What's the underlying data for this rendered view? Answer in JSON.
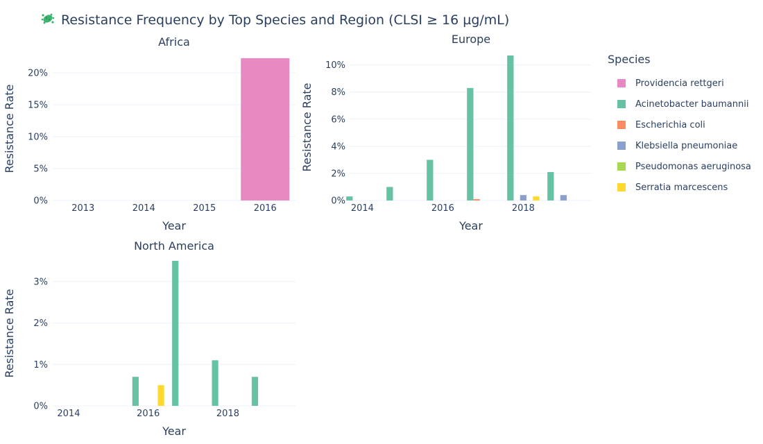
{
  "title": {
    "icon": "bacteria-icon",
    "text": "Resistance Frequency by Top Species and Region (CLSI ≥ 16 µg/mL)"
  },
  "legend": {
    "title": "Species",
    "items": [
      {
        "label": "Providencia rettgeri",
        "color": "#e78ac3"
      },
      {
        "label": "Acinetobacter baumannii",
        "color": "#66c2a5"
      },
      {
        "label": "Escherichia coli",
        "color": "#fc8d62"
      },
      {
        "label": "Klebsiella pneumoniae",
        "color": "#8da0cb"
      },
      {
        "label": "Pseudomonas aeruginosa",
        "color": "#a6d854"
      },
      {
        "label": "Serratia marcescens",
        "color": "#ffd92f"
      }
    ]
  },
  "chart_data": [
    {
      "type": "bar",
      "title": "Africa",
      "xlabel": "Year",
      "ylabel": "Resistance Rate",
      "x_ticks": [
        2013,
        2014,
        2015,
        2016
      ],
      "ylim": [
        0,
        0.225
      ],
      "y_ticks": [
        0,
        0.05,
        0.1,
        0.15,
        0.2
      ],
      "y_tick_labels": [
        "0%",
        "5%",
        "10%",
        "15%",
        "20%"
      ],
      "bar_width_years": 0.8,
      "series": [
        {
          "name": "Providencia rettgeri",
          "color": "#e78ac3",
          "x": [
            2013,
            2014,
            2015,
            2016
          ],
          "values": [
            0,
            0,
            0,
            0.223
          ]
        }
      ]
    },
    {
      "type": "bar",
      "title": "Europe",
      "xlabel": "Year",
      "ylabel": "Resistance Rate",
      "x_ticks": [
        2014,
        2016,
        2018
      ],
      "xlim": [
        2013.7,
        2019.7
      ],
      "ylim": [
        0,
        0.108
      ],
      "y_ticks": [
        0,
        0.02,
        0.04,
        0.06,
        0.08,
        0.1
      ],
      "y_tick_labels": [
        "0%",
        "2%",
        "4%",
        "6%",
        "8%",
        "10%"
      ],
      "bar_width_years": 0.16,
      "series": [
        {
          "name": "Acinetobacter baumannii",
          "color": "#66c2a5",
          "x": [
            2014,
            2015,
            2016,
            2017,
            2018,
            2019
          ],
          "values": [
            0.003,
            0.01,
            0.03,
            0.083,
            0.107,
            0.021
          ]
        },
        {
          "name": "Escherichia coli",
          "color": "#fc8d62",
          "x": [
            2014,
            2015,
            2016,
            2017,
            2018,
            2019
          ],
          "values": [
            0,
            0,
            0,
            0.001,
            0,
            0
          ]
        },
        {
          "name": "Klebsiella pneumoniae",
          "color": "#8da0cb",
          "x": [
            2014,
            2015,
            2016,
            2017,
            2018,
            2019
          ],
          "values": [
            0,
            0,
            0,
            0,
            0.004,
            0.004
          ]
        },
        {
          "name": "Pseudomonas aeruginosa",
          "color": "#a6d854",
          "x": [
            2014,
            2015,
            2016,
            2017,
            2018,
            2019
          ],
          "values": [
            0,
            0,
            0,
            0,
            0,
            0
          ]
        },
        {
          "name": "Serratia marcescens",
          "color": "#ffd92f",
          "x": [
            2014,
            2015,
            2016,
            2017,
            2018,
            2019
          ],
          "values": [
            0,
            0,
            0,
            0,
            0.003,
            0
          ]
        }
      ]
    },
    {
      "type": "bar",
      "title": "North America",
      "xlabel": "Year",
      "ylabel": "Resistance Rate",
      "x_ticks": [
        2014,
        2016,
        2018
      ],
      "xlim": [
        2013.6,
        2019.7
      ],
      "ylim": [
        0,
        0.035
      ],
      "y_ticks": [
        0,
        0.01,
        0.02,
        0.03
      ],
      "y_tick_labels": [
        "0%",
        "1%",
        "2%",
        "3%"
      ],
      "bar_width_years": 0.16,
      "series": [
        {
          "name": "Acinetobacter baumannii",
          "color": "#66c2a5",
          "x": [
            2014,
            2015,
            2016,
            2017,
            2018,
            2019
          ],
          "values": [
            0,
            0,
            0.007,
            0.035,
            0.011,
            0.007
          ]
        },
        {
          "name": "Escherichia coli",
          "color": "#fc8d62",
          "x": [
            2014,
            2015,
            2016,
            2017,
            2018,
            2019
          ],
          "values": [
            0,
            0,
            0,
            0,
            0,
            0
          ]
        },
        {
          "name": "Klebsiella pneumoniae",
          "color": "#8da0cb",
          "x": [
            2014,
            2015,
            2016,
            2017,
            2018,
            2019
          ],
          "values": [
            0,
            0,
            0,
            0,
            0,
            0
          ]
        },
        {
          "name": "Pseudomonas aeruginosa",
          "color": "#a6d854",
          "x": [
            2014,
            2015,
            2016,
            2017,
            2018,
            2019
          ],
          "values": [
            0,
            0,
            0,
            0,
            0,
            0
          ]
        },
        {
          "name": "Serratia marcescens",
          "color": "#ffd92f",
          "x": [
            2014,
            2015,
            2016,
            2017,
            2018,
            2019
          ],
          "values": [
            0,
            0,
            0.005,
            0,
            0,
            0
          ]
        }
      ]
    }
  ]
}
